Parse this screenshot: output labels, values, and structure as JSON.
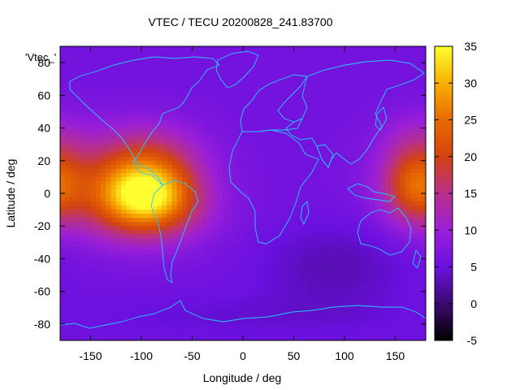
{
  "chart_data": {
    "type": "heatmap",
    "title": "VTEC / TECU 20200828_241.83700",
    "xlabel": "Longitude / deg",
    "ylabel": "Latitude / deg",
    "xlim": [
      -180,
      180
    ],
    "ylim": [
      -90,
      90
    ],
    "x_ticks": [
      -150,
      -100,
      -50,
      0,
      50,
      100,
      150
    ],
    "y_ticks": [
      -80,
      -60,
      -40,
      -20,
      0,
      20,
      40,
      60,
      80
    ],
    "colorbar": {
      "range": [
        -5,
        35
      ],
      "ticks": [
        -5,
        0,
        5,
        10,
        15,
        20,
        25,
        30,
        35
      ],
      "colormap": "gnuplot-hot (black-purple-red-yellow)"
    },
    "legend_label": "'Vtec_'",
    "description_values": {
      "background_level": 6,
      "peak": {
        "lon": -95,
        "lat": 0,
        "value": 35
      },
      "eastern_enhancement": {
        "lon": 170,
        "lat": 5,
        "value": 20
      },
      "minimum": {
        "lon": 90,
        "lat": -45,
        "value": 3
      }
    },
    "overlay": "coastlines"
  }
}
